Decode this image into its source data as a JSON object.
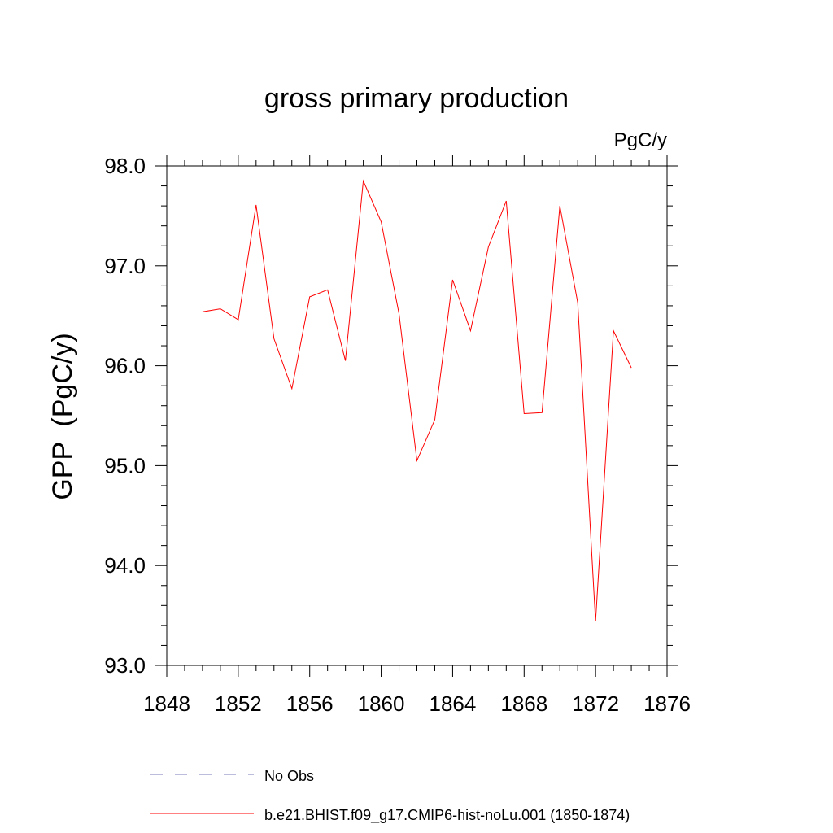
{
  "chart_data": {
    "type": "line",
    "title": "gross primary production",
    "units_label": "PgC/y",
    "ylabel": "GPP  (PgC/y)",
    "xlabel": "",
    "xlim": [
      1848,
      1876
    ],
    "ylim": [
      93.0,
      98.0
    ],
    "x_ticks": [
      "1848",
      "1852",
      "1856",
      "1860",
      "1864",
      "1868",
      "1872",
      "1876"
    ],
    "y_ticks": [
      "93.0",
      "94.0",
      "95.0",
      "96.0",
      "97.0",
      "98.0"
    ],
    "grid": false,
    "legend_position": "bottom",
    "series": [
      {
        "name": "b.e21.BHIST.f09_g17.CMIP6-hist-noLu.001 (1850-1874)",
        "color": "#ff0000",
        "x": [
          1850,
          1851,
          1852,
          1853,
          1854,
          1855,
          1856,
          1857,
          1858,
          1859,
          1860,
          1861,
          1862,
          1863,
          1864,
          1865,
          1866,
          1867,
          1868,
          1869,
          1870,
          1871,
          1872,
          1873,
          1874
        ],
        "values": [
          96.54,
          96.57,
          96.46,
          97.61,
          96.27,
          95.77,
          96.69,
          96.76,
          96.05,
          97.85,
          97.44,
          96.52,
          95.05,
          95.46,
          96.86,
          96.35,
          97.19,
          97.65,
          95.52,
          95.53,
          97.6,
          96.63,
          93.44,
          96.35,
          95.98
        ]
      }
    ],
    "legend": [
      {
        "label": "No Obs",
        "color": "#7a7ab8",
        "style": "dashed"
      },
      {
        "label": "b.e21.BHIST.f09_g17.CMIP6-hist-noLu.001 (1850-1874)",
        "color": "#ff0000",
        "style": "solid"
      }
    ]
  }
}
